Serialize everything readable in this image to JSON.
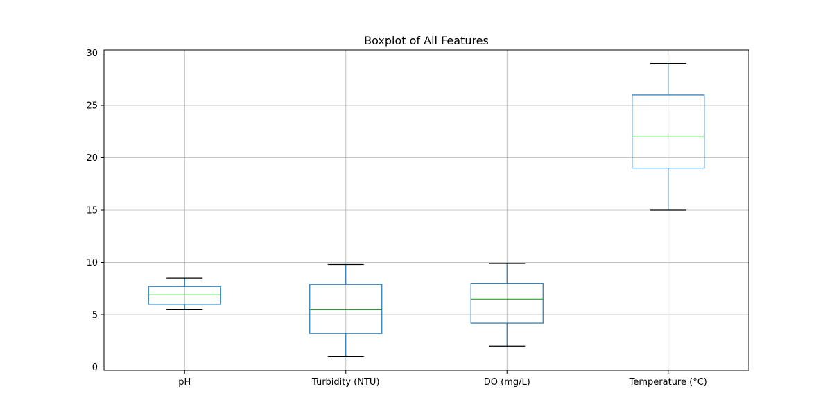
{
  "chart_data": {
    "type": "boxplot",
    "title": "Boxplot of All Features",
    "xlabel": "",
    "ylabel": "",
    "ylim": [
      -0.3,
      30.3
    ],
    "yticks": [
      0,
      5,
      10,
      15,
      20,
      25,
      30
    ],
    "grid": true,
    "categories": [
      "pH",
      "Turbidity (NTU)",
      "DO (mg/L)",
      "Temperature (°C)"
    ],
    "boxes": [
      {
        "name": "pH",
        "whisker_low": 5.5,
        "q1": 6.0,
        "median": 6.9,
        "q3": 7.7,
        "whisker_high": 8.5
      },
      {
        "name": "Turbidity (NTU)",
        "whisker_low": 1.0,
        "q1": 3.2,
        "median": 5.5,
        "q3": 7.9,
        "whisker_high": 9.8
      },
      {
        "name": "DO (mg/L)",
        "whisker_low": 2.0,
        "q1": 4.2,
        "median": 6.5,
        "q3": 8.0,
        "whisker_high": 9.9
      },
      {
        "name": "Temperature (°C)",
        "whisker_low": 15.0,
        "q1": 19.0,
        "median": 22.0,
        "q3": 26.0,
        "whisker_high": 29.0
      }
    ],
    "colors": {
      "box": "#1f77b4",
      "median": "#2ca02c",
      "whisker_cap": "#000000",
      "grid": "#b0b0b0",
      "axis": "#000000"
    }
  }
}
